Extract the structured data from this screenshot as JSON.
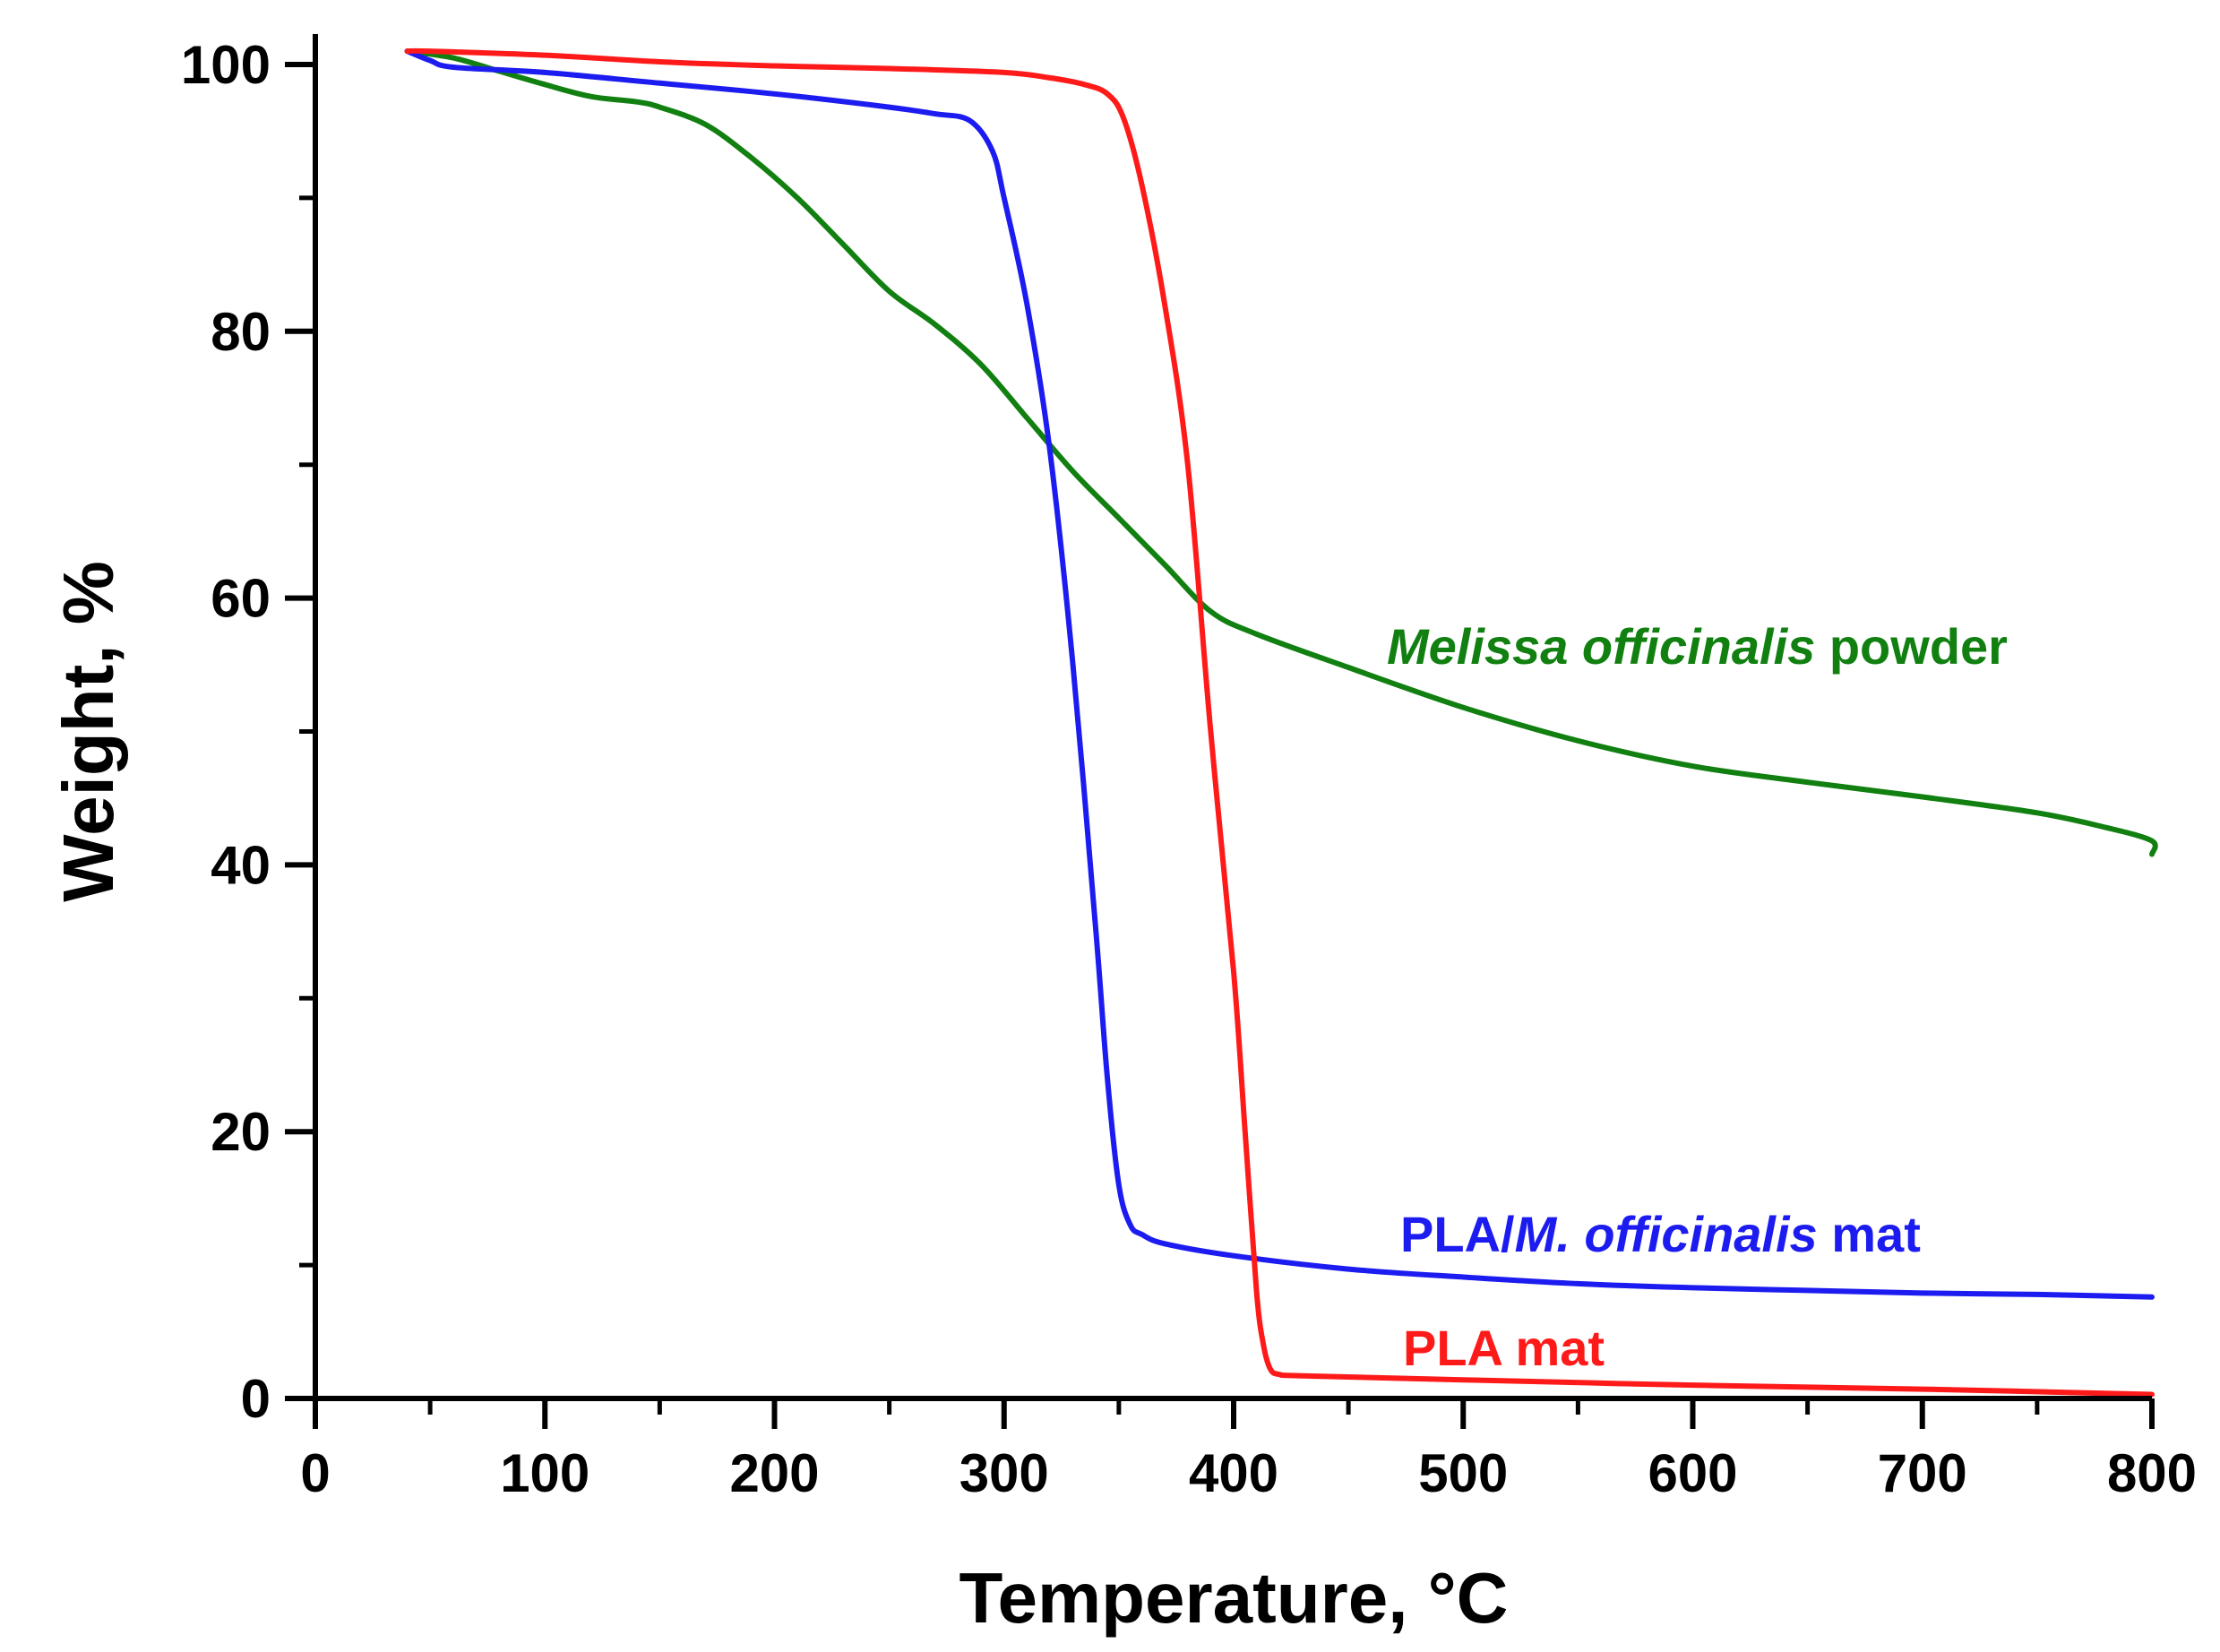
{
  "chart_data": {
    "type": "line",
    "xlabel": "Temperature, °C",
    "ylabel": "Weight, %",
    "xlim": [
      0,
      800
    ],
    "ylim": [
      0,
      100
    ],
    "x_ticks": [
      0,
      100,
      200,
      300,
      400,
      500,
      600,
      700,
      800
    ],
    "y_ticks": [
      0,
      20,
      40,
      60,
      80,
      100
    ],
    "grid": false,
    "legend": "inline labels",
    "series": [
      {
        "name": "Melissa officinalis powder",
        "color": "#118011",
        "x": [
          40,
          60,
          80,
          100,
          120,
          140,
          150,
          170,
          190,
          210,
          230,
          250,
          270,
          290,
          310,
          330,
          350,
          370,
          390,
          410,
          450,
          500,
          550,
          600,
          650,
          700,
          750,
          780,
          800,
          800
        ],
        "y": [
          101,
          100.5,
          99.5,
          98.5,
          97.6,
          97.2,
          96.8,
          95.5,
          93,
          90,
          86.5,
          83,
          80.5,
          77.5,
          73.5,
          69.5,
          66,
          62.5,
          59,
          57.3,
          54.8,
          51.8,
          49.3,
          47.4,
          46.2,
          45.1,
          43.9,
          42.8,
          41.8,
          40.8
        ]
      },
      {
        "name": "PLA/M. officinalis mat",
        "color": "#1c1cf0",
        "x": [
          40,
          50,
          60,
          100,
          150,
          200,
          250,
          270,
          285,
          295,
          300,
          310,
          320,
          330,
          340,
          345,
          350,
          355,
          360,
          370,
          400,
          450,
          500,
          550,
          600,
          650,
          700,
          750,
          800
        ],
        "y": [
          101,
          100.3,
          99.8,
          99.4,
          98.6,
          97.8,
          96.8,
          96.3,
          95.8,
          93.5,
          90,
          82,
          71,
          55,
          35,
          24,
          16,
          13,
          12.3,
          11.6,
          10.7,
          9.7,
          9.1,
          8.6,
          8.3,
          8.1,
          7.9,
          7.8,
          7.6
        ]
      },
      {
        "name": "PLA mat",
        "color": "#ff1a1a",
        "x": [
          40,
          50,
          100,
          150,
          200,
          250,
          300,
          320,
          335,
          345,
          352,
          360,
          370,
          380,
          390,
          400,
          405,
          410,
          413,
          416,
          420,
          430,
          500,
          600,
          700,
          800
        ],
        "y": [
          101,
          101,
          100.7,
          100.2,
          99.9,
          99.7,
          99.4,
          99,
          98.5,
          97.8,
          96,
          91,
          82,
          70,
          50,
          32,
          20,
          8,
          4,
          2.2,
          1.8,
          1.7,
          1.4,
          1.0,
          0.7,
          0.3
        ]
      }
    ],
    "annotations": [
      {
        "series": 0,
        "parts": [
          {
            "text": "Melissa officinalis",
            "italic": true
          },
          {
            "text": " powder",
            "italic": false
          }
        ]
      },
      {
        "series": 1,
        "parts": [
          {
            "text": "PLA/",
            "italic": false
          },
          {
            "text": "M. officinalis",
            "italic": true
          },
          {
            "text": " mat",
            "italic": false
          }
        ]
      },
      {
        "series": 2,
        "parts": [
          {
            "text": "PLA mat",
            "italic": false
          }
        ]
      }
    ]
  }
}
